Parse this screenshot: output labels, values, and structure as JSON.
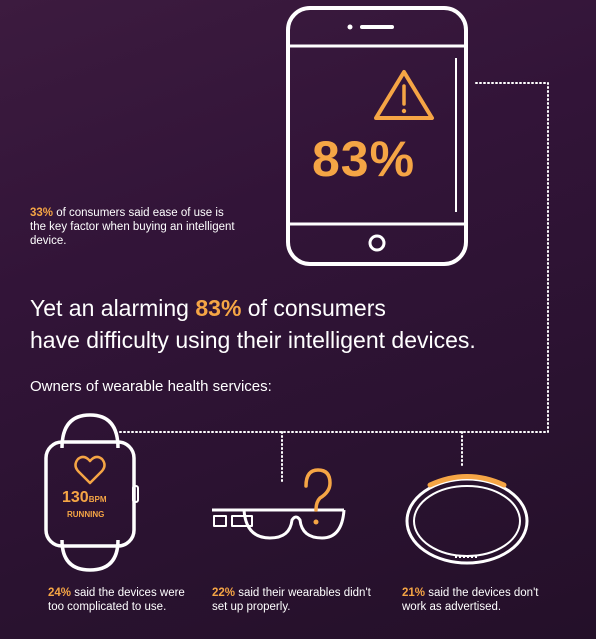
{
  "phone": {
    "percent": "83%"
  },
  "stat_top": {
    "highlight": "33%",
    "text": " of consumers said ease of use is the key factor when buying an intelligent device."
  },
  "headline": {
    "line1_pre": "Yet an alarming ",
    "highlight": "83%",
    "line1_post": " of consumers",
    "line2": "have difficulty using their intelligent devices."
  },
  "owners_label": "Owners of wearable health services:",
  "watch": {
    "bpm_value": "130",
    "bpm_unit": "BPM",
    "status": "RUNNING"
  },
  "stats": [
    {
      "highlight": "24%",
      "text": " said the devices were too complicated to use."
    },
    {
      "highlight": "22%",
      "text": " said their wearables didn't set up properly."
    },
    {
      "highlight": "21%",
      "text": " said the devices don't work as advertised."
    }
  ],
  "colors": {
    "accent": "#f5a545",
    "icon_stroke": "#ffffff",
    "background": "#321438"
  },
  "icons": [
    "smartphone-icon",
    "warning-icon",
    "smartwatch-icon",
    "heart-icon",
    "smart-glasses-icon",
    "question-mark-icon",
    "fitness-band-icon"
  ]
}
